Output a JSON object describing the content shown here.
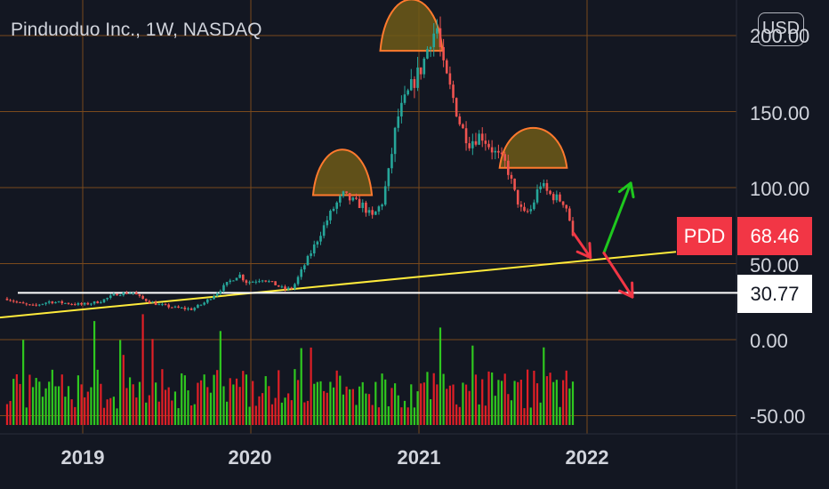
{
  "header": {
    "ticker_title": "Pinduoduo Inc., 1W, NASDAQ"
  },
  "toolbar": {
    "currency_label": "USD"
  },
  "price_axis": {
    "labels": [
      "200.00",
      "150.00",
      "100.00",
      "50.00",
      "0.00",
      "-50.00"
    ]
  },
  "time_axis": {
    "labels": [
      "2019",
      "2020",
      "2021",
      "2022"
    ]
  },
  "badges": {
    "symbol": "PDD",
    "last_price": "68.46",
    "support_level": "30.77"
  },
  "colors": {
    "background": "#131722",
    "grid": "#7a4a1c",
    "up": "#26a69a",
    "down": "#ef5350",
    "volume_up": "#2fc81f",
    "volume_down": "#e01f26",
    "trendline": "#ffeb3b",
    "support_line": "#ffffff",
    "pattern_fill": "#6e5a17",
    "pattern_stroke": "#ff7a2e",
    "arrow_up": "#1ec81e",
    "arrow_down": "#f23645",
    "badge_red": "#f23645"
  },
  "chart_data": {
    "type": "candlestick",
    "title": "Pinduoduo Inc., 1W, NASDAQ",
    "xlabel": "",
    "ylabel": "",
    "ylim": [
      -55,
      215
    ],
    "x_ticks": [
      2019,
      2020,
      2021,
      2022
    ],
    "y_ticks": [
      200,
      150,
      100,
      50,
      0,
      -50
    ],
    "grid": true,
    "price_path": [
      [
        2018.55,
        27
      ],
      [
        2018.62,
        24
      ],
      [
        2018.7,
        22
      ],
      [
        2018.8,
        25
      ],
      [
        2018.9,
        24
      ],
      [
        2019.0,
        23
      ],
      [
        2019.1,
        25
      ],
      [
        2019.2,
        30
      ],
      [
        2019.3,
        31
      ],
      [
        2019.35,
        27
      ],
      [
        2019.45,
        23
      ],
      [
        2019.55,
        21
      ],
      [
        2019.65,
        20
      ],
      [
        2019.72,
        24
      ],
      [
        2019.8,
        31
      ],
      [
        2019.87,
        38
      ],
      [
        2019.93,
        43
      ],
      [
        2019.97,
        38
      ],
      [
        2020.0,
        38
      ],
      [
        2020.07,
        40
      ],
      [
        2020.15,
        36
      ],
      [
        2020.2,
        33
      ],
      [
        2020.25,
        34
      ],
      [
        2020.3,
        45
      ],
      [
        2020.37,
        60
      ],
      [
        2020.45,
        78
      ],
      [
        2020.5,
        88
      ],
      [
        2020.55,
        95
      ],
      [
        2020.62,
        90
      ],
      [
        2020.67,
        88
      ],
      [
        2020.72,
        80
      ],
      [
        2020.78,
        90
      ],
      [
        2020.82,
        110
      ],
      [
        2020.87,
        145
      ],
      [
        2020.92,
        158
      ],
      [
        2020.97,
        170
      ],
      [
        2021.02,
        180
      ],
      [
        2021.07,
        199
      ],
      [
        2021.11,
        205
      ],
      [
        2021.14,
        180
      ],
      [
        2021.2,
        160
      ],
      [
        2021.25,
        140
      ],
      [
        2021.3,
        130
      ],
      [
        2021.37,
        135
      ],
      [
        2021.45,
        123
      ],
      [
        2021.52,
        115
      ],
      [
        2021.57,
        96
      ],
      [
        2021.62,
        82
      ],
      [
        2021.67,
        86
      ],
      [
        2021.72,
        103
      ],
      [
        2021.77,
        96
      ],
      [
        2021.82,
        93
      ],
      [
        2021.87,
        90
      ],
      [
        2021.92,
        68.46
      ]
    ],
    "volume_range": [
      2018.55,
      2021.92
    ],
    "last_price": 68.46,
    "support_level": 30.77,
    "trendline": [
      [
        2018.55,
        15
      ],
      [
        2022.55,
        58
      ]
    ],
    "patterns": [
      {
        "type": "head-and-shoulders-arc",
        "x": [
          2020.37,
          2020.72
        ],
        "base": 95,
        "peak": 135
      },
      {
        "type": "head-and-shoulders-arc",
        "x": [
          2020.77,
          2021.14
        ],
        "base": 190,
        "peak": 235
      },
      {
        "type": "head-and-shoulders-arc",
        "x": [
          2021.48,
          2021.88
        ],
        "base": 113,
        "peak": 148
      }
    ],
    "annotations": [
      {
        "type": "arrow",
        "direction": "down",
        "color": "red",
        "from": [
          2021.92,
          70
        ],
        "to": [
          2022.02,
          54
        ]
      },
      {
        "type": "arrow",
        "direction": "up",
        "color": "green",
        "from": [
          2022.1,
          57
        ],
        "to": [
          2022.26,
          103
        ]
      },
      {
        "type": "arrow",
        "direction": "down",
        "color": "red",
        "from": [
          2022.1,
          57
        ],
        "to": [
          2022.27,
          28
        ]
      }
    ]
  }
}
